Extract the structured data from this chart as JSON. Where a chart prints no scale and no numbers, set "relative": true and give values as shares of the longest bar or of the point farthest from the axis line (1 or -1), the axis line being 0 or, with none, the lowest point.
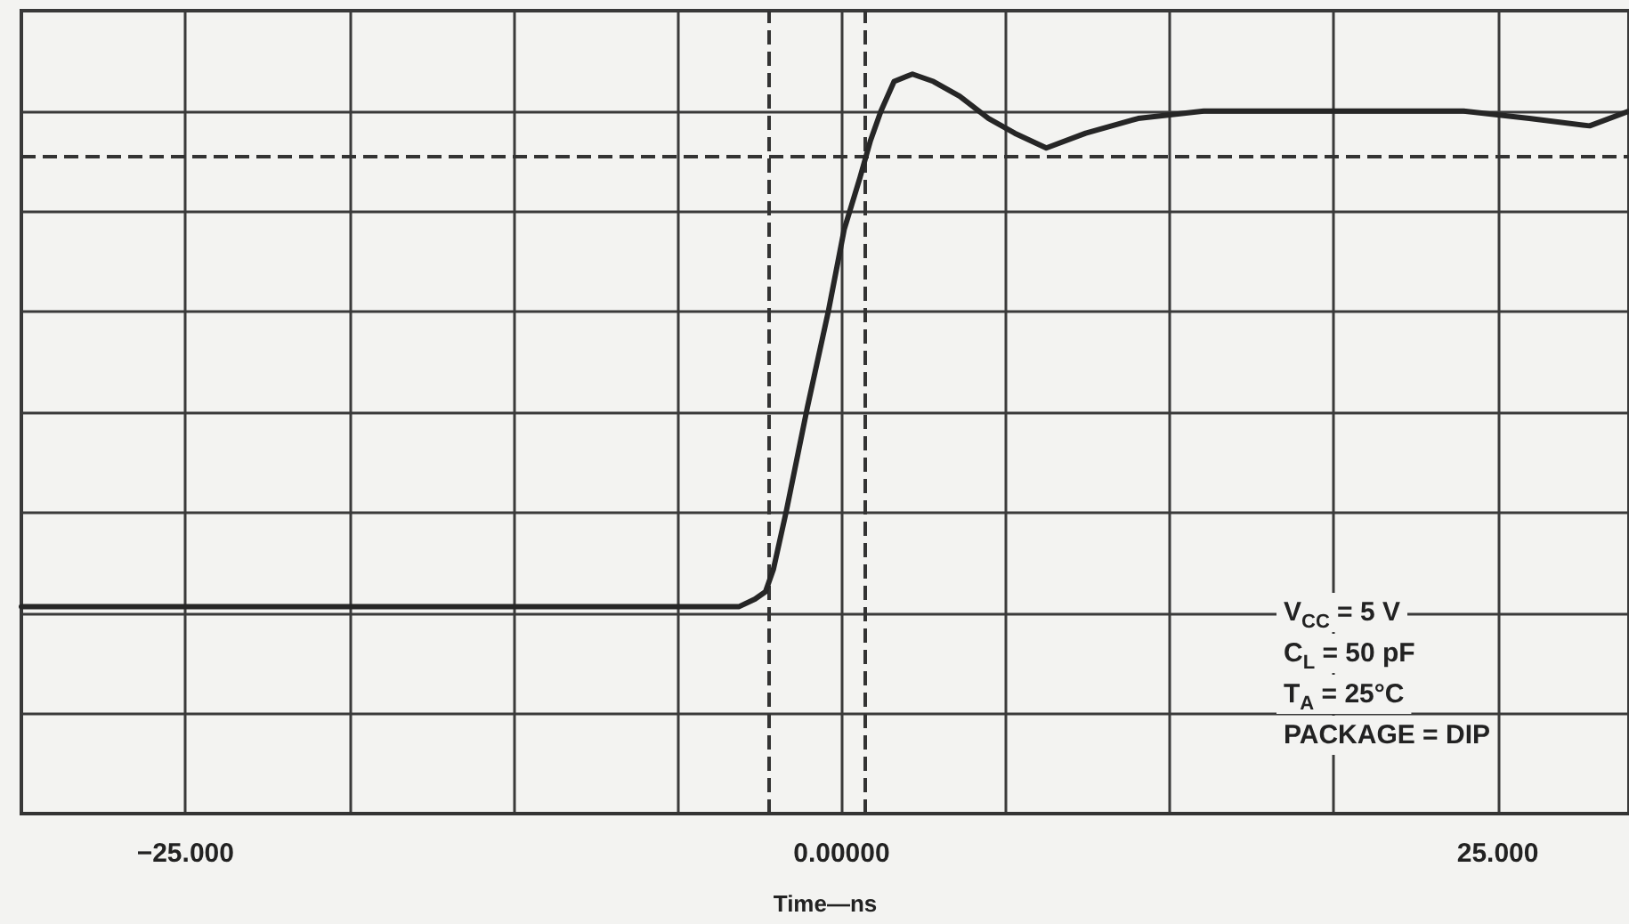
{
  "chart_data": {
    "type": "line",
    "relative": true,
    "xlabel": "Time—ns",
    "x": [
      -31.25,
      -11.7,
      -3.9,
      -3.3,
      -2.9,
      -2.6,
      -2.1,
      -1.3,
      -0.5,
      0.1,
      0.7,
      1.1,
      1.5,
      2.0,
      2.7,
      3.5,
      4.5,
      5.6,
      6.6,
      7.8,
      9.3,
      11.3,
      13.8,
      18.1,
      23.7,
      26.2,
      28.5,
      30.0
    ],
    "series": [
      {
        "color": "#262626",
        "values": [
          0.28,
          0.28,
          0.28,
          0.29,
          0.3,
          0.33,
          0.41,
          0.55,
          0.68,
          0.79,
          0.86,
          0.91,
          0.95,
          0.99,
          1.0,
          0.99,
          0.97,
          0.94,
          0.92,
          0.9,
          0.92,
          0.94,
          0.95,
          0.95,
          0.95,
          0.94,
          0.93,
          0.95
        ]
      }
    ],
    "xlim": [
      -31.25,
      30
    ],
    "xticks": [
      {
        "value": -31.25,
        "label": null
      },
      {
        "value": -25,
        "label": "−25.000"
      },
      {
        "value": -18.75,
        "label": null
      },
      {
        "value": -12.5,
        "label": null
      },
      {
        "value": -6.25,
        "label": null
      },
      {
        "value": 0,
        "label": "0.00000"
      },
      {
        "value": 6.25,
        "label": null
      },
      {
        "value": 12.5,
        "label": null
      },
      {
        "value": 18.75,
        "label": null
      },
      {
        "value": 25,
        "label": "25.000"
      }
    ],
    "ref_lines": [
      {
        "axis": "y",
        "value": 0.89,
        "color": "#333333",
        "line_style": "dashed"
      },
      {
        "axis": "x",
        "value": -2.8,
        "color": "#333333",
        "line_style": "dashed"
      },
      {
        "axis": "x",
        "value": 0.9,
        "color": "#333333",
        "line_style": "dashed"
      }
    ],
    "annotations": [
      "V$_{CC}$ = 5 V",
      "C$_{L}$ = 50 pF",
      "T$_{A}$ = 25°C",
      "PACKAGE = DIP"
    ],
    "grid": true,
    "marker": "none",
    "line_style": "solid",
    "tick_labels": "x"
  }
}
